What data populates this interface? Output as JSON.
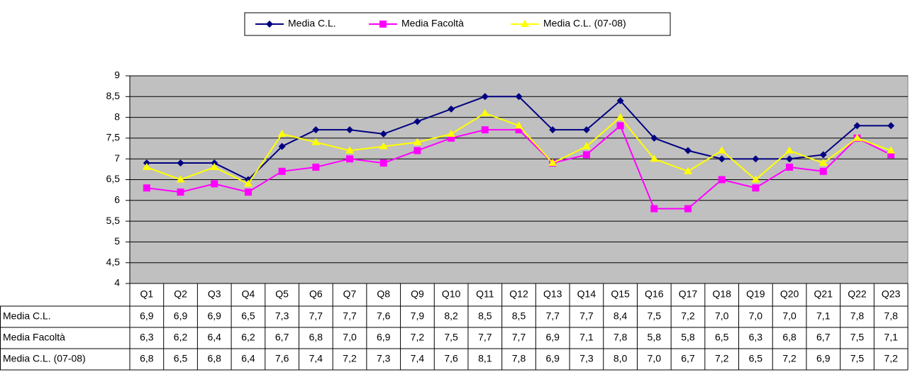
{
  "chart_data": {
    "type": "line",
    "categories": [
      "Q1",
      "Q2",
      "Q3",
      "Q4",
      "Q5",
      "Q6",
      "Q7",
      "Q8",
      "Q9",
      "Q10",
      "Q11",
      "Q12",
      "Q13",
      "Q14",
      "Q15",
      "Q16",
      "Q17",
      "Q18",
      "Q19",
      "Q20",
      "Q21",
      "Q22",
      "Q23"
    ],
    "series": [
      {
        "name": "Media C.L.",
        "color": "#000080",
        "marker": "diamond",
        "values": [
          6.9,
          6.9,
          6.9,
          6.5,
          7.3,
          7.7,
          7.7,
          7.6,
          7.9,
          8.2,
          8.5,
          8.5,
          7.7,
          7.7,
          8.4,
          7.5,
          7.2,
          7.0,
          7.0,
          7.0,
          7.1,
          7.8,
          7.8
        ],
        "value_labels": [
          "6,9",
          "6,9",
          "6,9",
          "6,5",
          "7,3",
          "7,7",
          "7,7",
          "7,6",
          "7,9",
          "8,2",
          "8,5",
          "8,5",
          "7,7",
          "7,7",
          "8,4",
          "7,5",
          "7,2",
          "7,0",
          "7,0",
          "7,0",
          "7,1",
          "7,8",
          "7,8"
        ]
      },
      {
        "name": "Media Facoltà",
        "color": "#ff00ff",
        "marker": "square",
        "values": [
          6.3,
          6.2,
          6.4,
          6.2,
          6.7,
          6.8,
          7.0,
          6.9,
          7.2,
          7.5,
          7.7,
          7.7,
          6.9,
          7.1,
          7.8,
          5.8,
          5.8,
          6.5,
          6.3,
          6.8,
          6.7,
          7.5,
          7.1
        ],
        "value_labels": [
          "6,3",
          "6,2",
          "6,4",
          "6,2",
          "6,7",
          "6,8",
          "7,0",
          "6,9",
          "7,2",
          "7,5",
          "7,7",
          "7,7",
          "6,9",
          "7,1",
          "7,8",
          "5,8",
          "5,8",
          "6,5",
          "6,3",
          "6,8",
          "6,7",
          "7,5",
          "7,1"
        ]
      },
      {
        "name": "Media C.L. (07-08)",
        "color": "#ffff00",
        "marker": "triangle",
        "values": [
          6.8,
          6.5,
          6.8,
          6.4,
          7.6,
          7.4,
          7.2,
          7.3,
          7.4,
          7.6,
          8.1,
          7.8,
          6.9,
          7.3,
          8.0,
          7.0,
          6.7,
          7.2,
          6.5,
          7.2,
          6.9,
          7.5,
          7.2
        ],
        "value_labels": [
          "6,8",
          "6,5",
          "6,8",
          "6,4",
          "7,6",
          "7,4",
          "7,2",
          "7,3",
          "7,4",
          "7,6",
          "8,1",
          "7,8",
          "6,9",
          "7,3",
          "8,0",
          "7,0",
          "6,7",
          "7,2",
          "6,5",
          "7,2",
          "6,9",
          "7,5",
          "7,2"
        ]
      }
    ],
    "ylim": [
      4,
      9
    ],
    "yticks": [
      4,
      {
        "value": 4.5,
        "label": "4,5"
      },
      5,
      {
        "value": 5.5,
        "label": "5,5"
      },
      6,
      {
        "value": 6.5,
        "label": "6,5"
      },
      7,
      {
        "value": 7.5,
        "label": "7,5"
      },
      8,
      {
        "value": 8.5,
        "label": "8,5"
      },
      9
    ],
    "grid": true,
    "legend": "top",
    "plot_background": "#c0c0c0",
    "data_table": true
  }
}
